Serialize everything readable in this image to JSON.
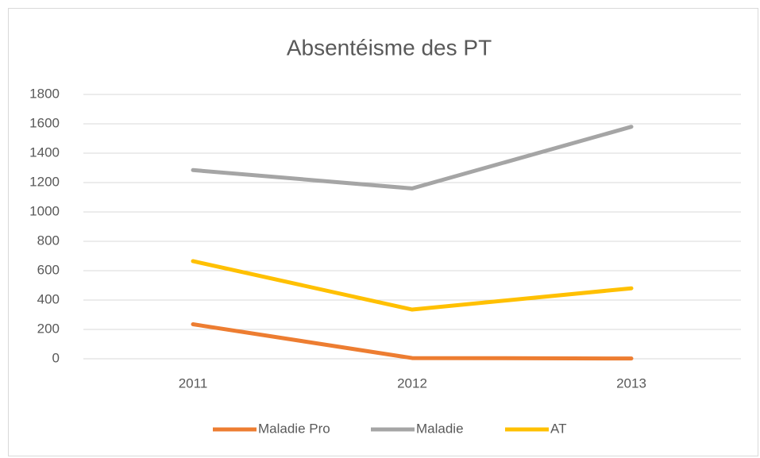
{
  "chart_data": {
    "type": "line",
    "title": "Absentéisme des PT",
    "categories": [
      "2011",
      "2012",
      "2013"
    ],
    "series": [
      {
        "name": "Maladie Pro",
        "color": "#ed7d31",
        "values": [
          235,
          5,
          2
        ]
      },
      {
        "name": "Maladie",
        "color": "#a5a5a5",
        "values": [
          1285,
          1160,
          1580
        ]
      },
      {
        "name": "AT",
        "color": "#ffc000",
        "values": [
          665,
          335,
          480
        ]
      }
    ],
    "ylim": [
      0,
      1800
    ],
    "yticks": [
      0,
      200,
      400,
      600,
      800,
      1000,
      1200,
      1400,
      1600,
      1800
    ],
    "grid": true,
    "legend": "bottom"
  }
}
